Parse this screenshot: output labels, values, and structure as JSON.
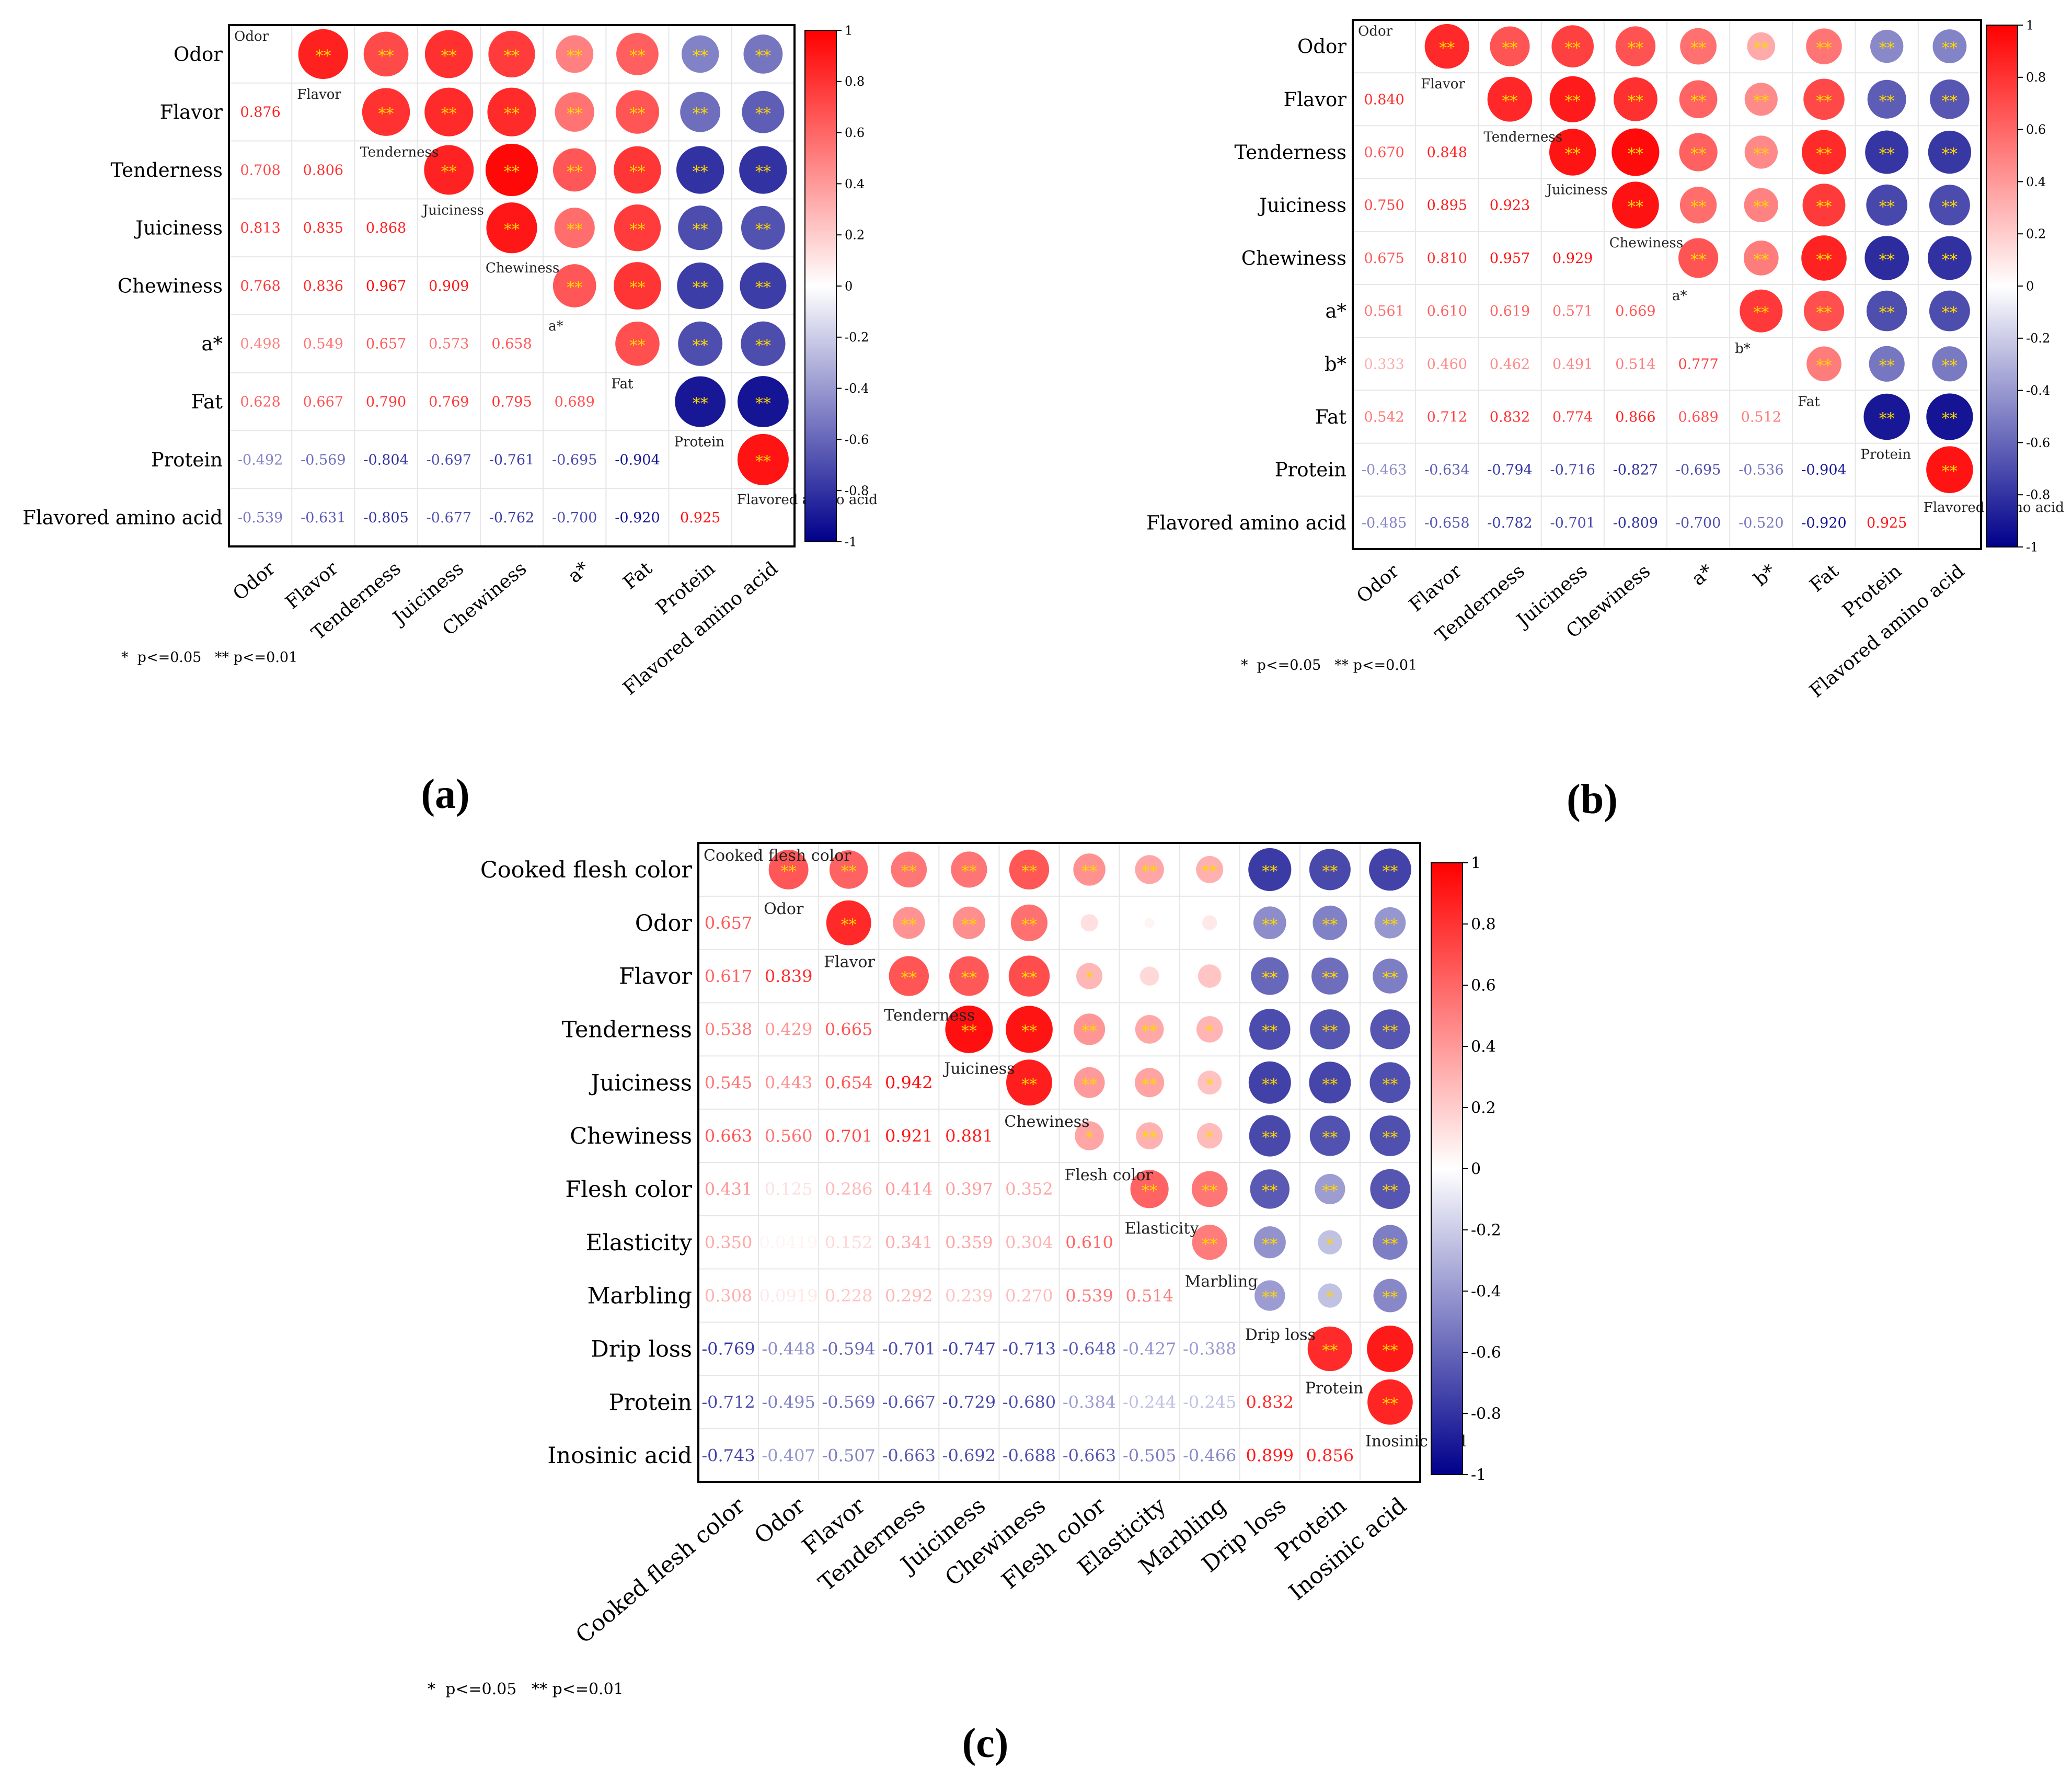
{
  "figure": {
    "significance_note": "*  p<=0.05   ** p<=0.01",
    "colors": {
      "positive": "#ff0000",
      "negative": "#00008b",
      "neutral": "#ffffff",
      "star": "#ffd700",
      "frame": "#000000",
      "grid": "#e6e6e6"
    },
    "colorbar_ticks": [
      "1",
      "0.8",
      "0.6",
      "0.4",
      "0.2",
      "0",
      "-0.2",
      "-0.4",
      "-0.6",
      "-0.8",
      "-1"
    ]
  },
  "chart_data": [
    {
      "type": "heatmap",
      "panel_label": "(a)",
      "variables": [
        "Odor",
        "Flavor",
        "Tenderness",
        "Juiciness",
        "Chewiness",
        "a*",
        "Fat",
        "Protein",
        "Flavored amino acid"
      ],
      "lower_labels": [
        [
          "0.876"
        ],
        [
          "0.708",
          "0.806"
        ],
        [
          "0.813",
          "0.835",
          "0.868"
        ],
        [
          "0.768",
          "0.836",
          "0.967",
          "0.909"
        ],
        [
          "0.498",
          "0.549",
          "0.657",
          "0.573",
          "0.658"
        ],
        [
          "0.628",
          "0.667",
          "0.790",
          "0.769",
          "0.795",
          "0.689"
        ],
        [
          "-0.492",
          "-0.569",
          "-0.804",
          "-0.697",
          "-0.761",
          "-0.695",
          "-0.904"
        ],
        [
          "-0.539",
          "-0.631",
          "-0.805",
          "-0.677",
          "-0.762",
          "-0.700",
          "-0.920",
          "0.925"
        ]
      ],
      "correlations": [
        [
          0.876
        ],
        [
          0.708,
          0.806
        ],
        [
          0.813,
          0.835,
          0.868
        ],
        [
          0.768,
          0.836,
          0.967,
          0.909
        ],
        [
          0.498,
          0.549,
          0.657,
          0.573,
          0.658
        ],
        [
          0.628,
          0.667,
          0.79,
          0.769,
          0.795,
          0.689
        ],
        [
          -0.492,
          -0.569,
          -0.804,
          -0.697,
          -0.761,
          -0.695,
          -0.904
        ],
        [
          -0.539,
          -0.631,
          -0.805,
          -0.677,
          -0.762,
          -0.7,
          -0.92,
          0.925
        ]
      ],
      "significance": [
        [
          "**"
        ],
        [
          "**",
          "**"
        ],
        [
          "**",
          "**",
          "**"
        ],
        [
          "**",
          "**",
          "**",
          "**"
        ],
        [
          "**",
          "**",
          "**",
          "**",
          "**"
        ],
        [
          "**",
          "**",
          "**",
          "**",
          "**",
          "**"
        ],
        [
          "**",
          "**",
          "**",
          "**",
          "**",
          "**",
          "**"
        ],
        [
          "**",
          "**",
          "**",
          "**",
          "**",
          "**",
          "**",
          "**"
        ]
      ],
      "colorbar_range": [
        -1,
        1
      ]
    },
    {
      "type": "heatmap",
      "panel_label": "(b)",
      "variables": [
        "Odor",
        "Flavor",
        "Tenderness",
        "Juiciness",
        "Chewiness",
        "a*",
        "b*",
        "Fat",
        "Protein",
        "Flavored amino acid"
      ],
      "lower_labels": [
        [
          "0.840"
        ],
        [
          "0.670",
          "0.848"
        ],
        [
          "0.750",
          "0.895",
          "0.923"
        ],
        [
          "0.675",
          "0.810",
          "0.957",
          "0.929"
        ],
        [
          "0.561",
          "0.610",
          "0.619",
          "0.571",
          "0.669"
        ],
        [
          "0.333",
          "0.460",
          "0.462",
          "0.491",
          "0.514",
          "0.777"
        ],
        [
          "0.542",
          "0.712",
          "0.832",
          "0.774",
          "0.866",
          "0.689",
          "0.512"
        ],
        [
          "-0.463",
          "-0.634",
          "-0.794",
          "-0.716",
          "-0.827",
          "-0.695",
          "-0.536",
          "-0.904"
        ],
        [
          "-0.485",
          "-0.658",
          "-0.782",
          "-0.701",
          "-0.809",
          "-0.700",
          "-0.520",
          "-0.920",
          "0.925"
        ]
      ],
      "correlations": [
        [
          0.84
        ],
        [
          0.67,
          0.848
        ],
        [
          0.75,
          0.895,
          0.923
        ],
        [
          0.675,
          0.81,
          0.957,
          0.929
        ],
        [
          0.561,
          0.61,
          0.619,
          0.571,
          0.669
        ],
        [
          0.333,
          0.46,
          0.462,
          0.491,
          0.514,
          0.777
        ],
        [
          0.542,
          0.712,
          0.832,
          0.774,
          0.866,
          0.689,
          0.512
        ],
        [
          -0.463,
          -0.634,
          -0.794,
          -0.716,
          -0.827,
          -0.695,
          -0.536,
          -0.904
        ],
        [
          -0.485,
          -0.658,
          -0.782,
          -0.701,
          -0.809,
          -0.7,
          -0.52,
          -0.92,
          0.925
        ]
      ],
      "significance": [
        [
          "**"
        ],
        [
          "**",
          "**"
        ],
        [
          "**",
          "**",
          "**"
        ],
        [
          "**",
          "**",
          "**",
          "**"
        ],
        [
          "**",
          "**",
          "**",
          "**",
          "**"
        ],
        [
          "**",
          "**",
          "**",
          "**",
          "**",
          "**"
        ],
        [
          "**",
          "**",
          "**",
          "**",
          "**",
          "**",
          "**"
        ],
        [
          "**",
          "**",
          "**",
          "**",
          "**",
          "**",
          "**",
          "**"
        ],
        [
          "**",
          "**",
          "**",
          "**",
          "**",
          "**",
          "**",
          "**",
          "**"
        ]
      ],
      "colorbar_range": [
        -1,
        1
      ]
    },
    {
      "type": "heatmap",
      "panel_label": "(c)",
      "variables": [
        "Cooked flesh color",
        "Odor",
        "Flavor",
        "Tenderness",
        "Juiciness",
        "Chewiness",
        "Flesh color",
        "Elasticity",
        "Marbling",
        "Drip loss",
        "Protein",
        "Inosinic acid"
      ],
      "lower_labels": [
        [
          "0.657"
        ],
        [
          "0.617",
          "0.839"
        ],
        [
          "0.538",
          "0.429",
          "0.665"
        ],
        [
          "0.545",
          "0.443",
          "0.654",
          "0.942"
        ],
        [
          "0.663",
          "0.560",
          "0.701",
          "0.921",
          "0.881"
        ],
        [
          "0.431",
          "0.125",
          "0.286",
          "0.414",
          "0.397",
          "0.352"
        ],
        [
          "0.350",
          "0.0419",
          "0.152",
          "0.341",
          "0.359",
          "0.304",
          "0.610"
        ],
        [
          "0.308",
          "0.0919",
          "0.228",
          "0.292",
          "0.239",
          "0.270",
          "0.539",
          "0.514"
        ],
        [
          "-0.769",
          "-0.448",
          "-0.594",
          "-0.701",
          "-0.747",
          "-0.713",
          "-0.648",
          "-0.427",
          "-0.388"
        ],
        [
          "-0.712",
          "-0.495",
          "-0.569",
          "-0.667",
          "-0.729",
          "-0.680",
          "-0.384",
          "-0.244",
          "-0.245",
          "0.832"
        ],
        [
          "-0.743",
          "-0.407",
          "-0.507",
          "-0.663",
          "-0.692",
          "-0.688",
          "-0.663",
          "-0.505",
          "-0.466",
          "0.899",
          "0.856"
        ]
      ],
      "correlations": [
        [
          0.657
        ],
        [
          0.617,
          0.839
        ],
        [
          0.538,
          0.429,
          0.665
        ],
        [
          0.545,
          0.443,
          0.654,
          0.942
        ],
        [
          0.663,
          0.56,
          0.701,
          0.921,
          0.881
        ],
        [
          0.431,
          0.125,
          0.286,
          0.414,
          0.397,
          0.352
        ],
        [
          0.35,
          0.0419,
          0.152,
          0.341,
          0.359,
          0.304,
          0.61
        ],
        [
          0.308,
          0.0919,
          0.228,
          0.292,
          0.239,
          0.27,
          0.539,
          0.514
        ],
        [
          -0.769,
          -0.448,
          -0.594,
          -0.701,
          -0.747,
          -0.713,
          -0.648,
          -0.427,
          -0.388
        ],
        [
          -0.712,
          -0.495,
          -0.569,
          -0.667,
          -0.729,
          -0.68,
          -0.384,
          -0.244,
          -0.245,
          0.832
        ],
        [
          -0.743,
          -0.407,
          -0.507,
          -0.663,
          -0.692,
          -0.688,
          -0.663,
          -0.505,
          -0.466,
          0.899,
          0.856
        ]
      ],
      "significance": [
        [
          "**"
        ],
        [
          "**",
          "**"
        ],
        [
          "**",
          "**",
          "**"
        ],
        [
          "**",
          "**",
          "**",
          "**"
        ],
        [
          "**",
          "**",
          "**",
          "**",
          "**"
        ],
        [
          "**",
          "",
          "*",
          "**",
          "**",
          "*"
        ],
        [
          "**",
          "",
          "",
          "**",
          "**",
          "**",
          "**"
        ],
        [
          "**",
          "",
          "",
          "*",
          "*",
          "*",
          "**",
          "**"
        ],
        [
          "**",
          "**",
          "**",
          "**",
          "**",
          "**",
          "**",
          "**",
          "**"
        ],
        [
          "**",
          "**",
          "**",
          "**",
          "**",
          "**",
          "**",
          "*",
          "*",
          "**"
        ],
        [
          "**",
          "**",
          "**",
          "**",
          "**",
          "**",
          "**",
          "**",
          "**",
          "**",
          "**"
        ]
      ],
      "colorbar_range": [
        -1,
        1
      ]
    }
  ]
}
